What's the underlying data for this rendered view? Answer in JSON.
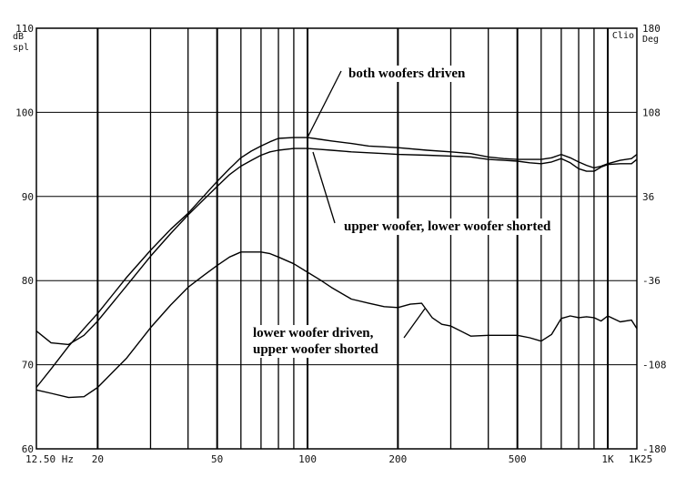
{
  "chart_data": {
    "type": "line",
    "x_scale": "log",
    "xlim": [
      12.5,
      1250
    ],
    "ylim": [
      60,
      110
    ],
    "y2lim": [
      -180,
      180
    ],
    "grid": true,
    "brand": "Clio",
    "left_unit": [
      "dB",
      "spl"
    ],
    "right_unit": "Deg",
    "x_ticks": [
      {
        "value": 12.5,
        "label": "12.50 Hz"
      },
      {
        "value": 20,
        "label": "20"
      },
      {
        "value": 50,
        "label": "50"
      },
      {
        "value": 100,
        "label": "100"
      },
      {
        "value": 200,
        "label": "200"
      },
      {
        "value": 500,
        "label": "500"
      },
      {
        "value": 1000,
        "label": "1K"
      },
      {
        "value": 1250,
        "label": "1K25"
      }
    ],
    "y_ticks": [
      {
        "value": 60,
        "label": "60"
      },
      {
        "value": 70,
        "label": "70"
      },
      {
        "value": 80,
        "label": "80"
      },
      {
        "value": 90,
        "label": "90"
      },
      {
        "value": 100,
        "label": "100"
      },
      {
        "value": 110,
        "label": "110"
      }
    ],
    "y2_ticks": [
      {
        "value": -180,
        "label": "-180"
      },
      {
        "value": -108,
        "label": "-108"
      },
      {
        "value": -36,
        "label": "-36"
      },
      {
        "value": 36,
        "label": "36"
      },
      {
        "value": 108,
        "label": "108"
      },
      {
        "value": 180,
        "label": "180"
      }
    ],
    "annotations": [
      {
        "lines": [
          "both woofers driven"
        ]
      },
      {
        "lines": [
          "upper woofer, lower woofer shorted"
        ]
      },
      {
        "lines": [
          "lower woofer driven,",
          "upper woofer shorted"
        ]
      }
    ],
    "series": [
      {
        "id": "both",
        "x": [
          12.5,
          14,
          16,
          18,
          20,
          25,
          30,
          35,
          40,
          45,
          50,
          55,
          60,
          65,
          70,
          75,
          80,
          90,
          100,
          110,
          120,
          140,
          160,
          180,
          200,
          250,
          300,
          350,
          400,
          450,
          500,
          550,
          600,
          650,
          700,
          750,
          800,
          850,
          900,
          950,
          1000,
          1100,
          1200,
          1250
        ],
        "y": [
          67.3,
          69.5,
          72.2,
          74.3,
          76.1,
          80.4,
          83.6,
          86.1,
          88.0,
          90.0,
          91.8,
          93.3,
          94.6,
          95.4,
          96.0,
          96.5,
          96.9,
          97.0,
          97.0,
          96.8,
          96.6,
          96.3,
          96.0,
          95.9,
          95.8,
          95.5,
          95.3,
          95.1,
          94.7,
          94.5,
          94.4,
          94.4,
          94.4,
          94.6,
          95.0,
          94.6,
          94.1,
          93.7,
          93.4,
          93.6,
          93.9,
          94.3,
          94.5,
          95.0
        ]
      },
      {
        "id": "upper_only",
        "x": [
          12.5,
          14,
          16,
          18,
          20,
          25,
          30,
          35,
          40,
          45,
          50,
          55,
          60,
          65,
          70,
          75,
          80,
          90,
          100,
          110,
          120,
          140,
          160,
          180,
          200,
          250,
          300,
          350,
          400,
          450,
          500,
          550,
          600,
          650,
          700,
          750,
          800,
          850,
          900,
          950,
          1000,
          1100,
          1200,
          1250
        ],
        "y": [
          74.0,
          72.6,
          72.4,
          73.5,
          75.2,
          79.4,
          82.9,
          85.6,
          87.8,
          89.6,
          91.2,
          92.6,
          93.6,
          94.3,
          94.9,
          95.3,
          95.5,
          95.7,
          95.7,
          95.6,
          95.5,
          95.3,
          95.2,
          95.1,
          95.0,
          94.9,
          94.8,
          94.7,
          94.4,
          94.3,
          94.2,
          94.0,
          93.9,
          94.1,
          94.5,
          94.0,
          93.3,
          93.0,
          93.0,
          93.5,
          93.8,
          93.9,
          93.9,
          94.4
        ]
      },
      {
        "id": "lower_only",
        "x": [
          12.5,
          14,
          16,
          18,
          20,
          25,
          30,
          35,
          40,
          45,
          50,
          55,
          60,
          65,
          70,
          75,
          80,
          90,
          100,
          110,
          120,
          140,
          160,
          180,
          200,
          220,
          240,
          260,
          280,
          300,
          350,
          400,
          450,
          500,
          550,
          600,
          650,
          700,
          750,
          800,
          850,
          900,
          950,
          1000,
          1100,
          1200,
          1250
        ],
        "y": [
          67.0,
          66.6,
          66.1,
          66.2,
          67.3,
          70.8,
          74.4,
          77.1,
          79.2,
          80.6,
          81.8,
          82.8,
          83.4,
          83.4,
          83.4,
          83.2,
          82.8,
          82.0,
          81.0,
          80.1,
          79.2,
          77.8,
          77.3,
          76.9,
          76.8,
          77.2,
          77.3,
          75.6,
          74.8,
          74.6,
          73.4,
          73.5,
          73.5,
          73.5,
          73.2,
          72.8,
          73.6,
          75.5,
          75.8,
          75.6,
          75.7,
          75.6,
          75.2,
          75.8,
          75.1,
          75.3,
          74.3
        ]
      }
    ]
  }
}
